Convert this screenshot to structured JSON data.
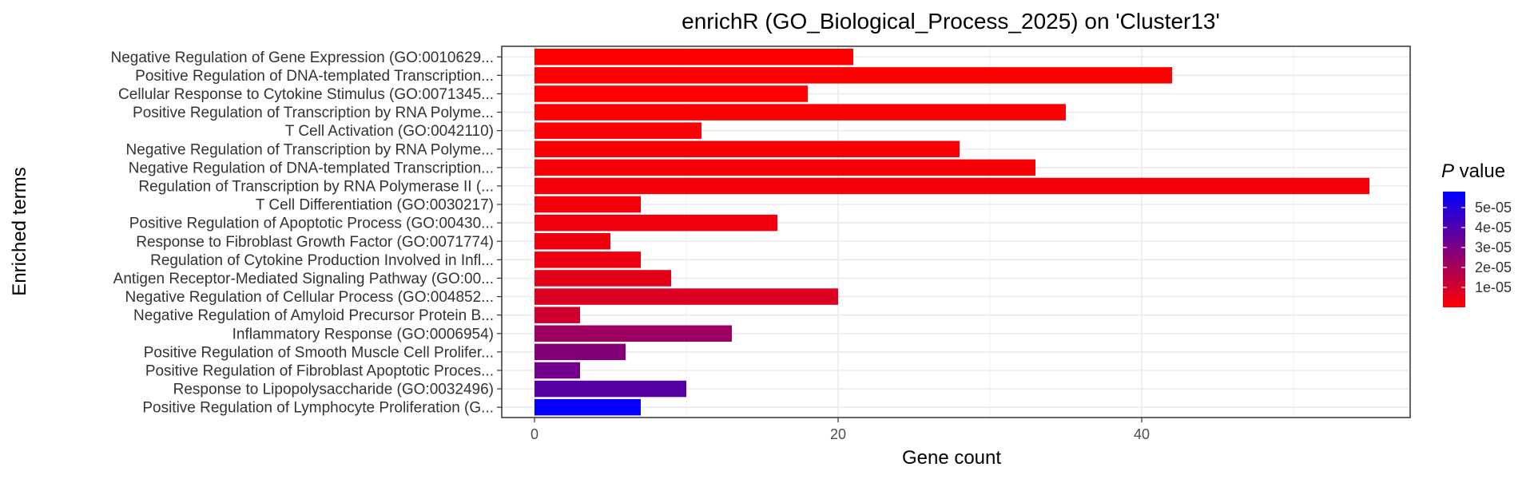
{
  "chart_data": {
    "type": "bar",
    "orientation": "horizontal",
    "title": "enrichR (GO_Biological_Process_2025) on 'Cluster13'",
    "xlabel": "Gene count",
    "ylabel": "Enriched terms",
    "xlim": [
      0,
      58
    ],
    "x_ticks": [
      0,
      20,
      40
    ],
    "grid": true,
    "categories": [
      "Negative Regulation of Gene Expression (GO:0010629...",
      "Positive Regulation of DNA-templated Transcription...",
      "Cellular Response to Cytokine Stimulus (GO:0071345...",
      "Positive Regulation of Transcription by RNA Polyme...",
      "T Cell Activation (GO:0042110)",
      "Negative Regulation of Transcription by RNA Polyme...",
      "Negative Regulation of DNA-templated Transcription...",
      "Regulation of Transcription by RNA Polymerase II (...",
      "T Cell Differentiation (GO:0030217)",
      "Positive Regulation of Apoptotic Process (GO:00430...",
      "Response to Fibroblast Growth Factor (GO:0071774)",
      "Regulation of Cytokine Production Involved in Infl...",
      "Antigen Receptor-Mediated Signaling Pathway (GO:00...",
      "Negative Regulation of Cellular Process (GO:004852...",
      "Negative Regulation of Amyloid Precursor Protein B...",
      "Inflammatory Response (GO:0006954)",
      "Positive Regulation of Smooth Muscle Cell Prolifer...",
      "Positive Regulation of Fibroblast Apoptotic Proces...",
      "Response to Lipopolysaccharide (GO:0032496)",
      "Positive Regulation of Lymphocyte Proliferation (G..."
    ],
    "values": [
      21,
      42,
      18,
      35,
      11,
      28,
      33,
      55,
      7,
      16,
      5,
      7,
      9,
      20,
      3,
      13,
      6,
      3,
      10,
      7
    ],
    "p_values": [
      1e-07,
      2e-07,
      3e-07,
      5e-07,
      8e-07,
      1.2e-06,
      1.5e-06,
      2e-06,
      2.5e-06,
      3e-06,
      3.5e-06,
      4e-06,
      6e-06,
      8e-06,
      1.1e-05,
      2.2e-05,
      2.8e-05,
      3.2e-05,
      3.8e-05,
      5.7e-05
    ],
    "legend": {
      "title_italic": "P",
      "title_rest": " value",
      "placement": "right",
      "ticks": [
        1e-05,
        2e-05,
        3e-05,
        4e-05,
        5e-05
      ],
      "tick_labels": [
        "1e-05",
        "2e-05",
        "3e-05",
        "4e-05",
        "5e-05"
      ],
      "range": [
        0,
        5.8e-05
      ],
      "color_low": "#FF0000",
      "color_high": "#0000FF"
    }
  }
}
